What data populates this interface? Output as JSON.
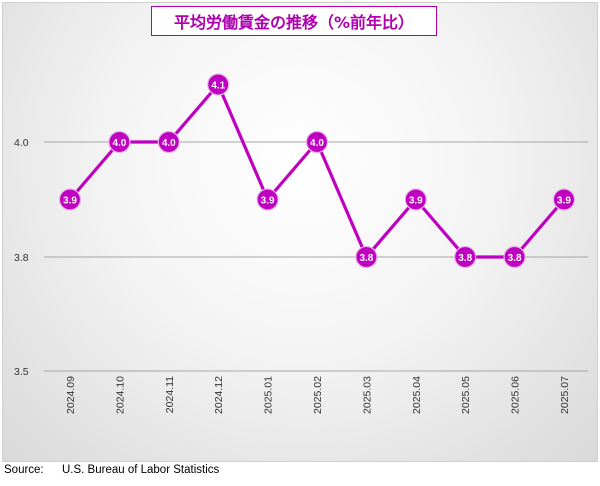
{
  "chart_data": {
    "type": "line",
    "title": "平均労働賃金の推移（%前年比）",
    "categories": [
      "2024.09",
      "2024.10",
      "2024.11",
      "2024.12",
      "2025.01",
      "2025.02",
      "2025.03",
      "2025.04",
      "2025.05",
      "2025.06",
      "2025.07"
    ],
    "values": [
      3.9,
      4.0,
      4.0,
      4.1,
      3.9,
      4.0,
      3.8,
      3.9,
      3.8,
      3.8,
      3.9
    ],
    "data_labels": [
      "3.9",
      "4.0",
      "4.0",
      "4.1",
      "3.9",
      "4.0",
      "3.8",
      "3.9",
      "3.8",
      "3.8",
      "3.9"
    ],
    "y_ticks": [
      "4.0",
      "3.8",
      "3.5"
    ],
    "y_tick_values": [
      4.0,
      3.8,
      3.5
    ],
    "ylim": [
      3.5,
      4.1
    ],
    "grid": true,
    "colors": {
      "line": "#c000c0",
      "marker": "#c000c0",
      "label": "#ffffff",
      "grid": "#a6a6a6"
    }
  },
  "source": {
    "label": "Source:",
    "text": "U.S. Bureau of Labor Statistics"
  }
}
